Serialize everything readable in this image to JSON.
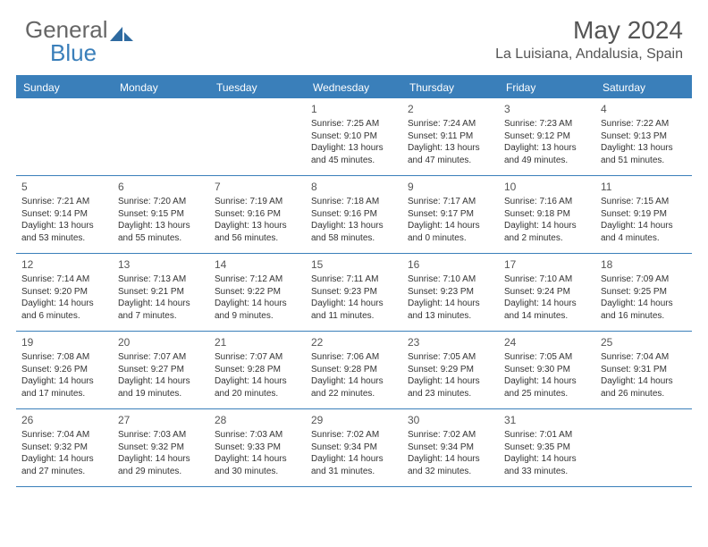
{
  "brand": {
    "part1": "General",
    "part2": "Blue"
  },
  "title": "May 2024",
  "location": "La Luisiana, Andalusia, Spain",
  "colors": {
    "accent": "#3a7fba",
    "text": "#333333",
    "muted": "#555555",
    "bg": "#ffffff"
  },
  "day_headers": [
    "Sunday",
    "Monday",
    "Tuesday",
    "Wednesday",
    "Thursday",
    "Friday",
    "Saturday"
  ],
  "weeks": [
    [
      null,
      null,
      null,
      {
        "n": "1",
        "sr": "Sunrise: 7:25 AM",
        "ss": "Sunset: 9:10 PM",
        "d1": "Daylight: 13 hours",
        "d2": "and 45 minutes."
      },
      {
        "n": "2",
        "sr": "Sunrise: 7:24 AM",
        "ss": "Sunset: 9:11 PM",
        "d1": "Daylight: 13 hours",
        "d2": "and 47 minutes."
      },
      {
        "n": "3",
        "sr": "Sunrise: 7:23 AM",
        "ss": "Sunset: 9:12 PM",
        "d1": "Daylight: 13 hours",
        "d2": "and 49 minutes."
      },
      {
        "n": "4",
        "sr": "Sunrise: 7:22 AM",
        "ss": "Sunset: 9:13 PM",
        "d1": "Daylight: 13 hours",
        "d2": "and 51 minutes."
      }
    ],
    [
      {
        "n": "5",
        "sr": "Sunrise: 7:21 AM",
        "ss": "Sunset: 9:14 PM",
        "d1": "Daylight: 13 hours",
        "d2": "and 53 minutes."
      },
      {
        "n": "6",
        "sr": "Sunrise: 7:20 AM",
        "ss": "Sunset: 9:15 PM",
        "d1": "Daylight: 13 hours",
        "d2": "and 55 minutes."
      },
      {
        "n": "7",
        "sr": "Sunrise: 7:19 AM",
        "ss": "Sunset: 9:16 PM",
        "d1": "Daylight: 13 hours",
        "d2": "and 56 minutes."
      },
      {
        "n": "8",
        "sr": "Sunrise: 7:18 AM",
        "ss": "Sunset: 9:16 PM",
        "d1": "Daylight: 13 hours",
        "d2": "and 58 minutes."
      },
      {
        "n": "9",
        "sr": "Sunrise: 7:17 AM",
        "ss": "Sunset: 9:17 PM",
        "d1": "Daylight: 14 hours",
        "d2": "and 0 minutes."
      },
      {
        "n": "10",
        "sr": "Sunrise: 7:16 AM",
        "ss": "Sunset: 9:18 PM",
        "d1": "Daylight: 14 hours",
        "d2": "and 2 minutes."
      },
      {
        "n": "11",
        "sr": "Sunrise: 7:15 AM",
        "ss": "Sunset: 9:19 PM",
        "d1": "Daylight: 14 hours",
        "d2": "and 4 minutes."
      }
    ],
    [
      {
        "n": "12",
        "sr": "Sunrise: 7:14 AM",
        "ss": "Sunset: 9:20 PM",
        "d1": "Daylight: 14 hours",
        "d2": "and 6 minutes."
      },
      {
        "n": "13",
        "sr": "Sunrise: 7:13 AM",
        "ss": "Sunset: 9:21 PM",
        "d1": "Daylight: 14 hours",
        "d2": "and 7 minutes."
      },
      {
        "n": "14",
        "sr": "Sunrise: 7:12 AM",
        "ss": "Sunset: 9:22 PM",
        "d1": "Daylight: 14 hours",
        "d2": "and 9 minutes."
      },
      {
        "n": "15",
        "sr": "Sunrise: 7:11 AM",
        "ss": "Sunset: 9:23 PM",
        "d1": "Daylight: 14 hours",
        "d2": "and 11 minutes."
      },
      {
        "n": "16",
        "sr": "Sunrise: 7:10 AM",
        "ss": "Sunset: 9:23 PM",
        "d1": "Daylight: 14 hours",
        "d2": "and 13 minutes."
      },
      {
        "n": "17",
        "sr": "Sunrise: 7:10 AM",
        "ss": "Sunset: 9:24 PM",
        "d1": "Daylight: 14 hours",
        "d2": "and 14 minutes."
      },
      {
        "n": "18",
        "sr": "Sunrise: 7:09 AM",
        "ss": "Sunset: 9:25 PM",
        "d1": "Daylight: 14 hours",
        "d2": "and 16 minutes."
      }
    ],
    [
      {
        "n": "19",
        "sr": "Sunrise: 7:08 AM",
        "ss": "Sunset: 9:26 PM",
        "d1": "Daylight: 14 hours",
        "d2": "and 17 minutes."
      },
      {
        "n": "20",
        "sr": "Sunrise: 7:07 AM",
        "ss": "Sunset: 9:27 PM",
        "d1": "Daylight: 14 hours",
        "d2": "and 19 minutes."
      },
      {
        "n": "21",
        "sr": "Sunrise: 7:07 AM",
        "ss": "Sunset: 9:28 PM",
        "d1": "Daylight: 14 hours",
        "d2": "and 20 minutes."
      },
      {
        "n": "22",
        "sr": "Sunrise: 7:06 AM",
        "ss": "Sunset: 9:28 PM",
        "d1": "Daylight: 14 hours",
        "d2": "and 22 minutes."
      },
      {
        "n": "23",
        "sr": "Sunrise: 7:05 AM",
        "ss": "Sunset: 9:29 PM",
        "d1": "Daylight: 14 hours",
        "d2": "and 23 minutes."
      },
      {
        "n": "24",
        "sr": "Sunrise: 7:05 AM",
        "ss": "Sunset: 9:30 PM",
        "d1": "Daylight: 14 hours",
        "d2": "and 25 minutes."
      },
      {
        "n": "25",
        "sr": "Sunrise: 7:04 AM",
        "ss": "Sunset: 9:31 PM",
        "d1": "Daylight: 14 hours",
        "d2": "and 26 minutes."
      }
    ],
    [
      {
        "n": "26",
        "sr": "Sunrise: 7:04 AM",
        "ss": "Sunset: 9:32 PM",
        "d1": "Daylight: 14 hours",
        "d2": "and 27 minutes."
      },
      {
        "n": "27",
        "sr": "Sunrise: 7:03 AM",
        "ss": "Sunset: 9:32 PM",
        "d1": "Daylight: 14 hours",
        "d2": "and 29 minutes."
      },
      {
        "n": "28",
        "sr": "Sunrise: 7:03 AM",
        "ss": "Sunset: 9:33 PM",
        "d1": "Daylight: 14 hours",
        "d2": "and 30 minutes."
      },
      {
        "n": "29",
        "sr": "Sunrise: 7:02 AM",
        "ss": "Sunset: 9:34 PM",
        "d1": "Daylight: 14 hours",
        "d2": "and 31 minutes."
      },
      {
        "n": "30",
        "sr": "Sunrise: 7:02 AM",
        "ss": "Sunset: 9:34 PM",
        "d1": "Daylight: 14 hours",
        "d2": "and 32 minutes."
      },
      {
        "n": "31",
        "sr": "Sunrise: 7:01 AM",
        "ss": "Sunset: 9:35 PM",
        "d1": "Daylight: 14 hours",
        "d2": "and 33 minutes."
      },
      null
    ]
  ]
}
